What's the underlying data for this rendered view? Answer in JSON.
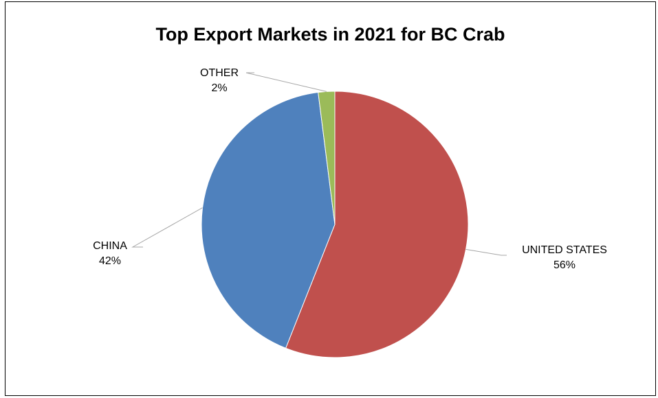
{
  "chart_data": {
    "type": "pie",
    "title": "Top Export Markets in 2021 for BC Crab",
    "slices": [
      {
        "label": "UNITED STATES",
        "value": 56,
        "display": "56%",
        "color": "#C0504D"
      },
      {
        "label": "CHINA",
        "value": 42,
        "display": "42%",
        "color": "#4F81BD"
      },
      {
        "label": "OTHER",
        "value": 2,
        "display": "2%",
        "color": "#9BBB59"
      }
    ],
    "legend": "none"
  }
}
